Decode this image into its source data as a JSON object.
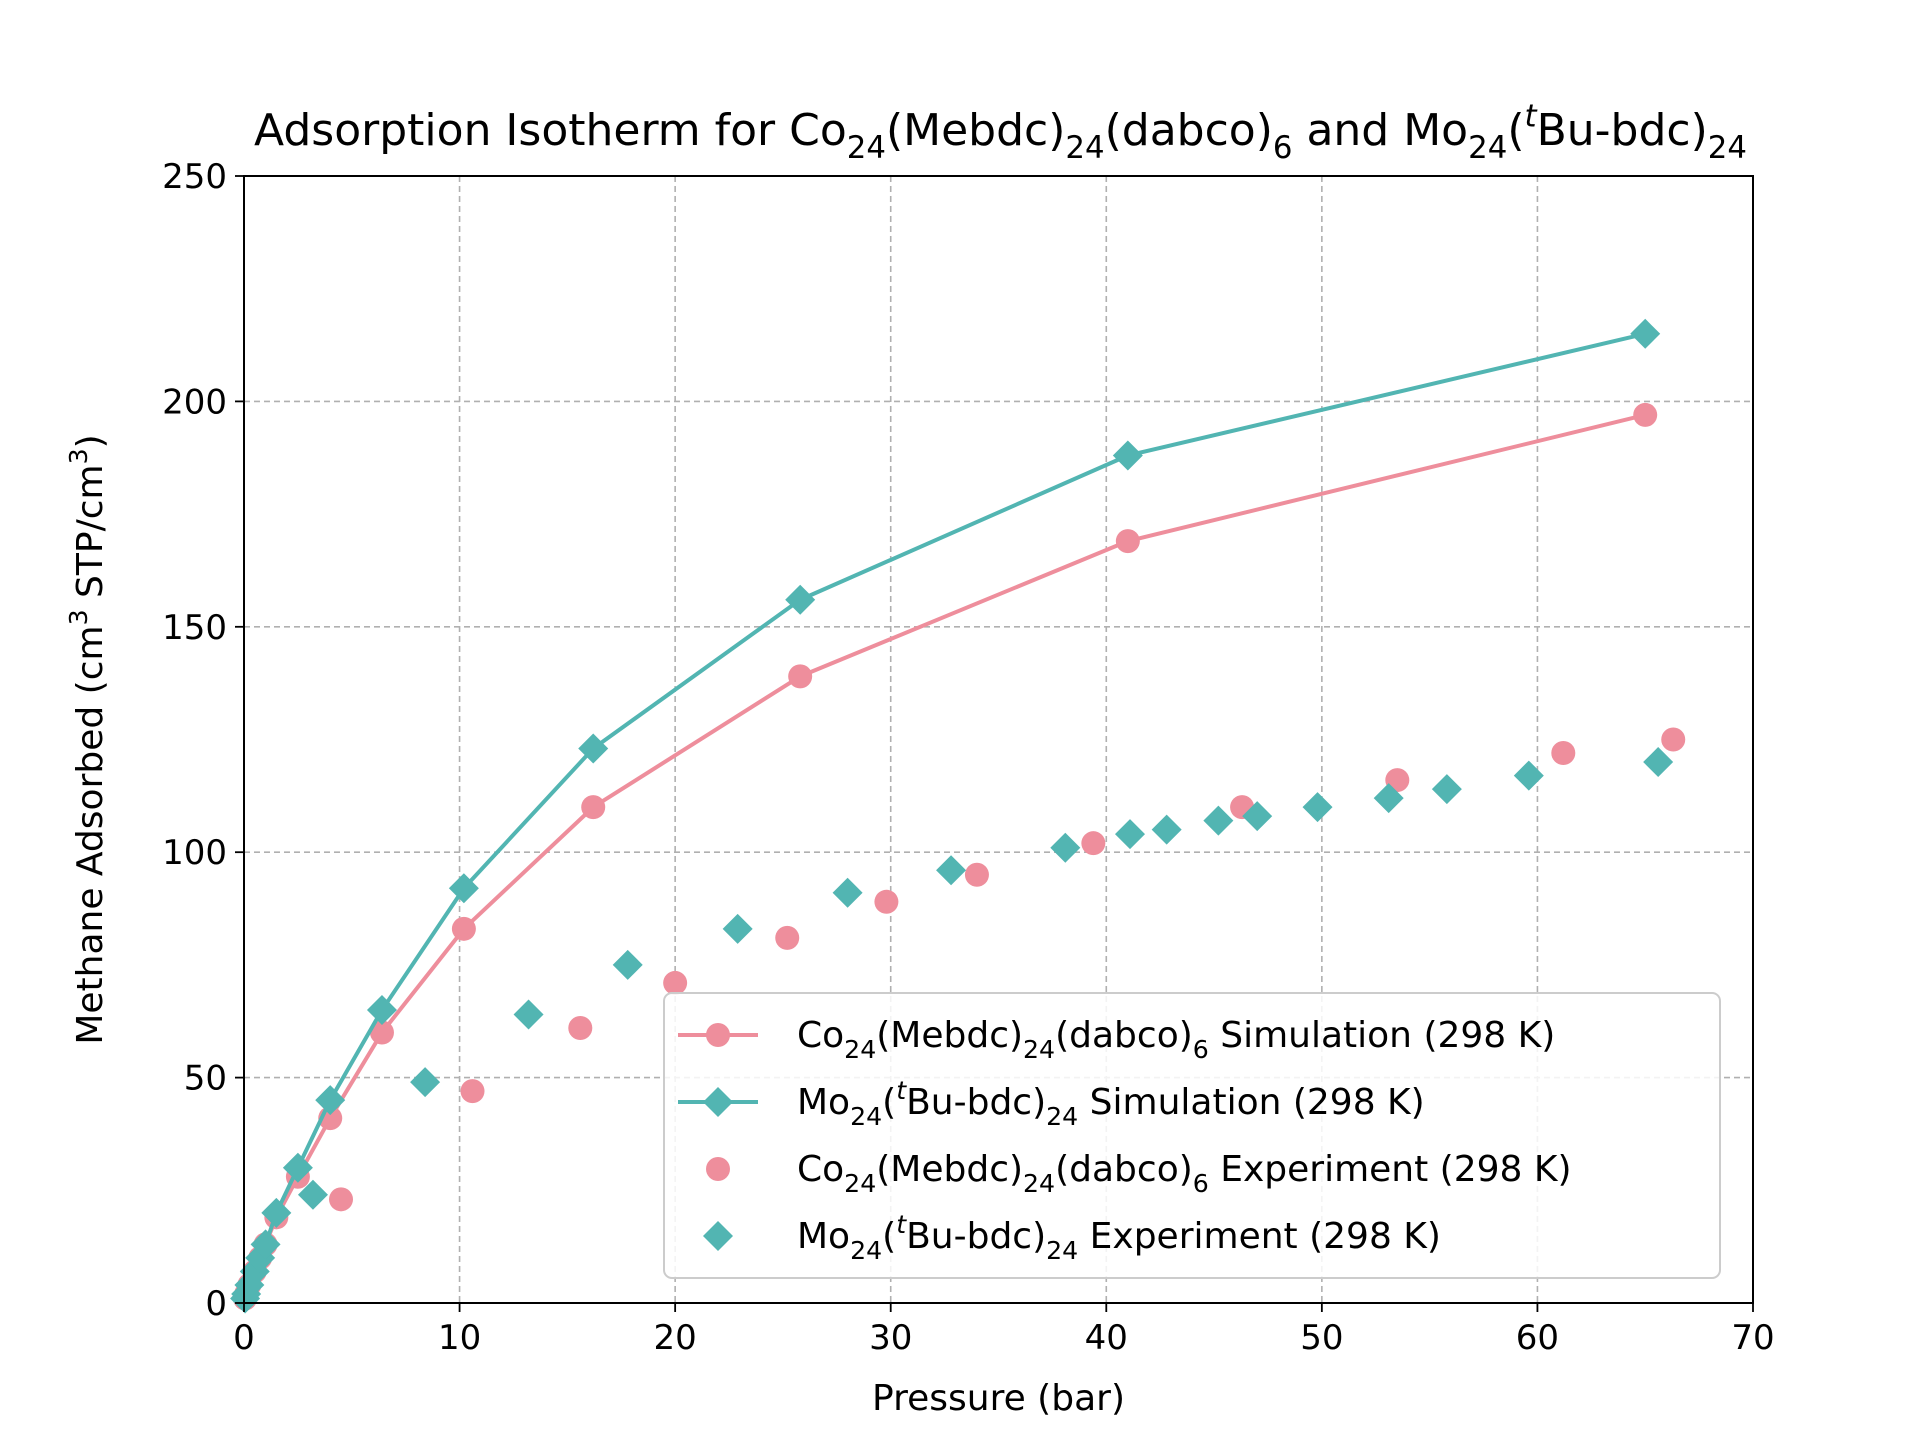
{
  "chart_data": {
    "type": "scatter",
    "title_parts": [
      {
        "t": "Adsorption Isotherm for Co",
        "s": "n"
      },
      {
        "t": "24",
        "s": "sub"
      },
      {
        "t": "(Mebdc)",
        "s": "n"
      },
      {
        "t": "24",
        "s": "sub"
      },
      {
        "t": "(dabco)",
        "s": "n"
      },
      {
        "t": "6",
        "s": "sub"
      },
      {
        "t": " and Mo",
        "s": "n"
      },
      {
        "t": "24",
        "s": "sub"
      },
      {
        "t": "(",
        "s": "n"
      },
      {
        "t": "t",
        "s": "supi"
      },
      {
        "t": "Bu-bdc)",
        "s": "n"
      },
      {
        "t": "24",
        "s": "sub"
      }
    ],
    "xlabel": "Pressure (bar)",
    "ylabel_parts": [
      {
        "t": "Methane Adsorbed (cm",
        "s": "n"
      },
      {
        "t": "3",
        "s": "sup"
      },
      {
        "t": " STP/cm",
        "s": "n"
      },
      {
        "t": "3",
        "s": "sup"
      },
      {
        "t": ")",
        "s": "n"
      }
    ],
    "xlim": [
      0,
      70
    ],
    "ylim": [
      0,
      250
    ],
    "xticks": [
      "0",
      "10",
      "20",
      "30",
      "40",
      "50",
      "60",
      "70"
    ],
    "yticks": [
      "0",
      "50",
      "100",
      "150",
      "200",
      "250"
    ],
    "grid": true,
    "legend_position": "lower-right",
    "series": [
      {
        "name_parts": [
          {
            "t": "Co",
            "s": "n"
          },
          {
            "t": "24",
            "s": "sub"
          },
          {
            "t": "(Mebdc)",
            "s": "n"
          },
          {
            "t": "24",
            "s": "sub"
          },
          {
            "t": "(dabco)",
            "s": "n"
          },
          {
            "t": "6",
            "s": "sub"
          },
          {
            "t": " Simulation (298 K)",
            "s": "n"
          }
        ],
        "color": "#ee8e9c",
        "marker": "circle",
        "line": true,
        "x": [
          0.05,
          0.1,
          0.25,
          0.5,
          0.75,
          1.0,
          1.5,
          2.5,
          4.0,
          6.4,
          10.2,
          16.2,
          25.8,
          41.0,
          65.0
        ],
        "y": [
          1,
          2,
          4,
          7,
          10,
          13,
          19,
          28,
          41,
          60,
          83,
          110,
          139,
          169,
          197
        ]
      },
      {
        "name_parts": [
          {
            "t": "Mo",
            "s": "n"
          },
          {
            "t": "24",
            "s": "sub"
          },
          {
            "t": "(",
            "s": "n"
          },
          {
            "t": "t",
            "s": "supi"
          },
          {
            "t": "Bu-bdc)",
            "s": "n"
          },
          {
            "t": "24",
            "s": "sub"
          },
          {
            "t": " Simulation (298 K)",
            "s": "n"
          }
        ],
        "color": "#52b5b2",
        "marker": "diamond",
        "line": true,
        "x": [
          0.05,
          0.1,
          0.25,
          0.5,
          0.75,
          1.0,
          1.5,
          2.5,
          4.0,
          6.4,
          10.2,
          16.2,
          25.8,
          41.0,
          65.0
        ],
        "y": [
          1,
          2,
          4,
          7,
          10,
          13,
          20,
          30,
          45,
          65,
          92,
          123,
          156,
          188,
          215
        ]
      },
      {
        "name_parts": [
          {
            "t": "Co",
            "s": "n"
          },
          {
            "t": "24",
            "s": "sub"
          },
          {
            "t": "(Mebdc)",
            "s": "n"
          },
          {
            "t": "24",
            "s": "sub"
          },
          {
            "t": "(dabco)",
            "s": "n"
          },
          {
            "t": "6",
            "s": "sub"
          },
          {
            "t": " Experiment (298 K)",
            "s": "n"
          }
        ],
        "color": "#ee8e9c",
        "marker": "circle",
        "line": false,
        "x": [
          4.5,
          10.6,
          15.6,
          20.0,
          25.2,
          29.8,
          34.0,
          39.4,
          46.3,
          53.5,
          61.2,
          66.3
        ],
        "y": [
          23,
          47,
          61,
          71,
          81,
          89,
          95,
          102,
          110,
          116,
          122,
          125
        ]
      },
      {
        "name_parts": [
          {
            "t": "Mo",
            "s": "n"
          },
          {
            "t": "24",
            "s": "sub"
          },
          {
            "t": "(",
            "s": "n"
          },
          {
            "t": "t",
            "s": "supi"
          },
          {
            "t": "Bu-bdc)",
            "s": "n"
          },
          {
            "t": "24",
            "s": "sub"
          },
          {
            "t": " Experiment (298 K)",
            "s": "n"
          }
        ],
        "color": "#52b5b2",
        "marker": "diamond",
        "line": false,
        "x": [
          3.2,
          8.4,
          13.2,
          17.8,
          22.9,
          28.0,
          32.8,
          38.1,
          41.1,
          42.8,
          45.2,
          47.0,
          49.8,
          53.1,
          55.8,
          59.6,
          65.6
        ],
        "y": [
          24,
          49,
          64,
          75,
          83,
          91,
          96,
          101,
          104,
          105,
          107,
          108,
          110,
          112,
          114,
          117,
          120
        ]
      }
    ]
  }
}
